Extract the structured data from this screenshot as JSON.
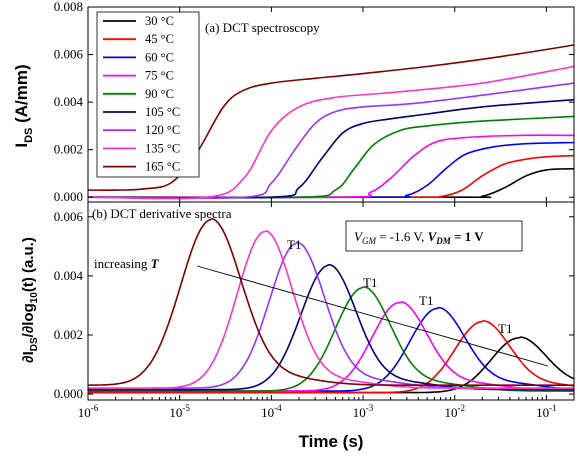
{
  "chart_data": [
    {
      "type": "line",
      "panel_label": "(a) DCT spectroscopy",
      "ylabel_main": "I",
      "ylabel_sub": "DS",
      "ylabel_unit": " (A/mm)",
      "xscale": "log",
      "xlim": [
        1e-06,
        0.2
      ],
      "ylim": [
        -0.0002,
        0.008
      ],
      "yticks": [
        0.0,
        0.002,
        0.004,
        0.006,
        0.008
      ],
      "ytick_labels": [
        "0.000",
        "0.002",
        "0.004",
        "0.006",
        "0.008"
      ],
      "legend_position": "top-left",
      "series": [
        {
          "name": "30 °C",
          "color": "#000000",
          "x": [
            1e-06,
            0.01,
            0.02,
            0.035,
            0.06,
            0.1,
            0.2
          ],
          "y": [
            0.0,
            0.0,
            4e-05,
            0.0004,
            0.0009,
            0.00115,
            0.0012
          ]
        },
        {
          "name": "45 °C",
          "color": "#ff0000",
          "x": [
            1e-06,
            0.003,
            0.007,
            0.012,
            0.02,
            0.035,
            0.06,
            0.1,
            0.2
          ],
          "y": [
            0.0,
            0.0,
            3e-05,
            0.0003,
            0.0009,
            0.0014,
            0.0016,
            0.0017,
            0.00175
          ]
        },
        {
          "name": "60 °C",
          "color": "#0000ff",
          "x": [
            1e-06,
            0.0015,
            0.003,
            0.005,
            0.008,
            0.013,
            0.025,
            0.06,
            0.2
          ],
          "y": [
            0.0,
            0.0,
            8e-05,
            0.0005,
            0.0012,
            0.0018,
            0.0021,
            0.00225,
            0.0023
          ]
        },
        {
          "name": "75 °C",
          "color": "#ff00ff",
          "x": [
            1e-06,
            0.0006,
            0.0012,
            0.002,
            0.0035,
            0.006,
            0.012,
            0.05,
            0.2
          ],
          "y": [
            0.0,
            0.0,
            0.0002,
            0.0008,
            0.0017,
            0.0023,
            0.0025,
            0.0026,
            0.0026
          ]
        },
        {
          "name": "90 °C",
          "color": "#008000",
          "x": [
            1e-06,
            0.0002,
            0.0005,
            0.0008,
            0.0013,
            0.0025,
            0.005,
            0.02,
            0.2
          ],
          "y": [
            0.0,
            0.0,
            0.0003,
            0.0012,
            0.0022,
            0.0028,
            0.003,
            0.0032,
            0.0034
          ]
        },
        {
          "name": "105 °C",
          "color": "#000080",
          "x": [
            1e-06,
            0.0001,
            0.0002,
            0.00035,
            0.0006,
            0.001,
            0.002,
            0.005,
            0.02,
            0.2
          ],
          "y": [
            0.0,
            0.0,
            0.0004,
            0.0016,
            0.0027,
            0.0031,
            0.0033,
            0.0035,
            0.0038,
            0.0041
          ]
        },
        {
          "name": "120 °C",
          "color": "#9933ff",
          "x": [
            1e-06,
            5e-05,
            0.0001,
            0.00018,
            0.0003,
            0.0005,
            0.001,
            0.005,
            0.2
          ],
          "y": [
            0.0,
            0.0,
            0.0006,
            0.002,
            0.0031,
            0.0036,
            0.0038,
            0.004,
            0.0048
          ]
        },
        {
          "name": "135 °C",
          "color": "#ff33cc",
          "x": [
            1e-06,
            2e-05,
            5e-05,
            0.0001,
            0.0002,
            0.0005,
            0.002,
            0.02,
            0.2
          ],
          "y": [
            0.0,
            0.0,
            0.0008,
            0.0028,
            0.0038,
            0.0042,
            0.0044,
            0.0048,
            0.0055
          ]
        },
        {
          "name": "165 °C",
          "color": "#800000",
          "x": [
            1e-06,
            2e-06,
            4e-06,
            8e-06,
            1.5e-05,
            3e-05,
            5e-05,
            0.0001,
            0.0003,
            0.001,
            0.005,
            0.03,
            0.2
          ],
          "y": [
            0.0003,
            0.0003,
            0.00035,
            0.0006,
            0.0018,
            0.0038,
            0.0045,
            0.0048,
            0.005,
            0.0052,
            0.0055,
            0.0059,
            0.0064
          ]
        }
      ]
    },
    {
      "type": "line",
      "panel_label": "(b) DCT derivative spectra",
      "xlabel": "Time (s)",
      "ylabel_a": "∂I",
      "ylabel_sub1": "DS",
      "ylabel_b": "/∂log",
      "ylabel_sub2": "10",
      "ylabel_c": "(t) (a.u.)",
      "xscale": "log",
      "xlim": [
        1e-06,
        0.2
      ],
      "ylim": [
        -0.0002,
        0.0065
      ],
      "yticks": [
        0.0,
        0.002,
        0.004,
        0.006
      ],
      "ytick_labels": [
        "0.000",
        "0.002",
        "0.004",
        "0.006"
      ],
      "xtick_labels": [
        {
          "base": "10",
          "exp": "-6"
        },
        {
          "base": "10",
          "exp": "-5"
        },
        {
          "base": "10",
          "exp": "-4"
        },
        {
          "base": "10",
          "exp": "-3"
        },
        {
          "base": "10",
          "exp": "-2"
        },
        {
          "base": "10",
          "exp": "-1"
        }
      ],
      "condition": {
        "vgm_symbol": "V",
        "vgm_sub": "GM",
        "vgm_value": " = -1.6 V, ",
        "vdm_symbol": "V",
        "vdm_sub": "DM",
        "vdm_value": " = 1 V"
      },
      "arrow_label": "increasing ",
      "arrow_symbol": "T",
      "peak_labels": [
        "T1",
        "T1",
        "T1",
        "T1"
      ],
      "series": [
        {
          "name": "30 °C",
          "color": "#000000",
          "peak_x": 0.05,
          "peak_y": 0.00185,
          "width": 0.3,
          "baseline": 5e-05
        },
        {
          "name": "45 °C",
          "color": "#ff0000",
          "peak_x": 0.02,
          "peak_y": 0.0024,
          "width": 0.3,
          "baseline": 5e-05
        },
        {
          "name": "60 °C",
          "color": "#0000ff",
          "peak_x": 0.0065,
          "peak_y": 0.0028,
          "width": 0.3,
          "baseline": 0.0001
        },
        {
          "name": "75 °C",
          "color": "#ff00ff",
          "peak_x": 0.0025,
          "peak_y": 0.003,
          "width": 0.3,
          "baseline": 0.0001
        },
        {
          "name": "90 °C",
          "color": "#008000",
          "peak_x": 0.001,
          "peak_y": 0.0035,
          "width": 0.3,
          "baseline": 0.0001
        },
        {
          "name": "105 °C",
          "color": "#000080",
          "peak_x": 0.00042,
          "peak_y": 0.0042,
          "width": 0.3,
          "baseline": 0.00015
        },
        {
          "name": "120 °C",
          "color": "#9933ff",
          "peak_x": 0.00019,
          "peak_y": 0.0049,
          "width": 0.3,
          "baseline": 0.0002
        },
        {
          "name": "135 °C",
          "color": "#ff33cc",
          "peak_x": 8.5e-05,
          "peak_y": 0.0053,
          "width": 0.3,
          "baseline": 0.0002
        },
        {
          "name": "165 °C",
          "color": "#800000",
          "peak_x": 2.2e-05,
          "peak_y": 0.0056,
          "width": 0.33,
          "baseline": 0.0003
        }
      ]
    }
  ]
}
